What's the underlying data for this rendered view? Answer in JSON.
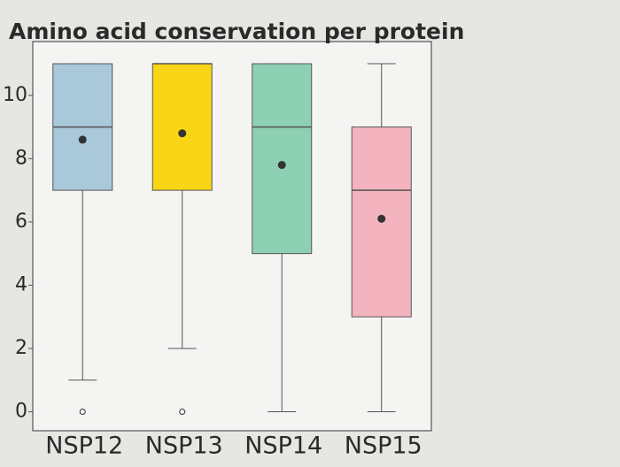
{
  "chart_data": {
    "type": "box",
    "title": "Amino acid conservation per protein",
    "categories": [
      "NSP12",
      "NSP13",
      "NSP14",
      "NSP15"
    ],
    "boxes": [
      {
        "color": "#a9c8d9",
        "min": 1,
        "q1": 7,
        "median": 9,
        "q3": 11,
        "max": 11,
        "mean": 8.6,
        "outliers": [
          0
        ]
      },
      {
        "color": "#f8d515",
        "min": 2,
        "q1": 7,
        "median": 11,
        "q3": 11,
        "max": 11,
        "mean": 8.8,
        "outliers": [
          0
        ]
      },
      {
        "color": "#8ed0b4",
        "min": 0,
        "q1": 5,
        "median": 9,
        "q3": 11,
        "max": 11,
        "mean": 7.8,
        "outliers": []
      },
      {
        "color": "#f4b4bf",
        "min": 0,
        "q1": 3,
        "median": 7,
        "q3": 9,
        "max": 11,
        "mean": 6.1,
        "outliers": []
      }
    ],
    "ylim": [
      -0.6,
      11.7
    ],
    "yticks": [
      0,
      2,
      4,
      6,
      8,
      10
    ]
  }
}
